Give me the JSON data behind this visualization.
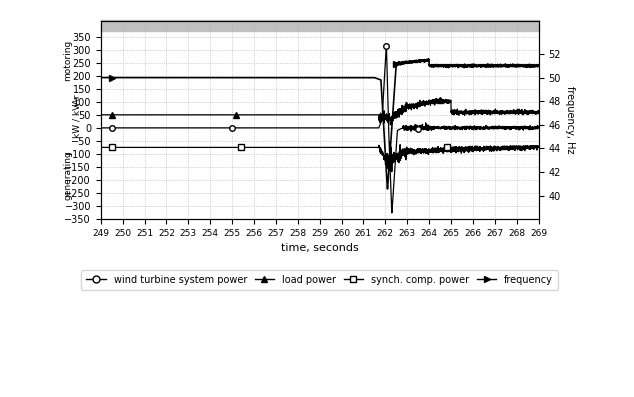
{
  "x_start": 249,
  "x_end": 269,
  "xlim": [
    249,
    269
  ],
  "ylim_left": [
    -350,
    410
  ],
  "ylim_right": [
    38,
    54.8
  ],
  "xlabel": "time, seconds",
  "ylabel_left_top": "motoring",
  "ylabel_left_bottom": "generating",
  "ylabel_left_mid": "kW / kVAr",
  "ylabel_right": "frequency, Hz",
  "yticks_left": [
    -350,
    -300,
    -250,
    -200,
    -150,
    -100,
    -50,
    0,
    50,
    100,
    150,
    200,
    250,
    300,
    350
  ],
  "yticks_right": [
    40,
    42,
    44,
    46,
    48,
    50,
    52
  ],
  "xticks": [
    249,
    250,
    251,
    252,
    253,
    254,
    255,
    256,
    257,
    258,
    259,
    260,
    261,
    262,
    263,
    264,
    265,
    266,
    267,
    268,
    269
  ],
  "grid_color": "#aaaaaa",
  "bg_color": "#ffffff",
  "top_band_color": "#c0c0c0",
  "legend_labels": [
    "wind turbine system power",
    "load power",
    "synch. comp. power",
    "frequency"
  ],
  "line_color": "#000000",
  "figsize": [
    6.34,
    3.97
  ],
  "dpi": 100
}
